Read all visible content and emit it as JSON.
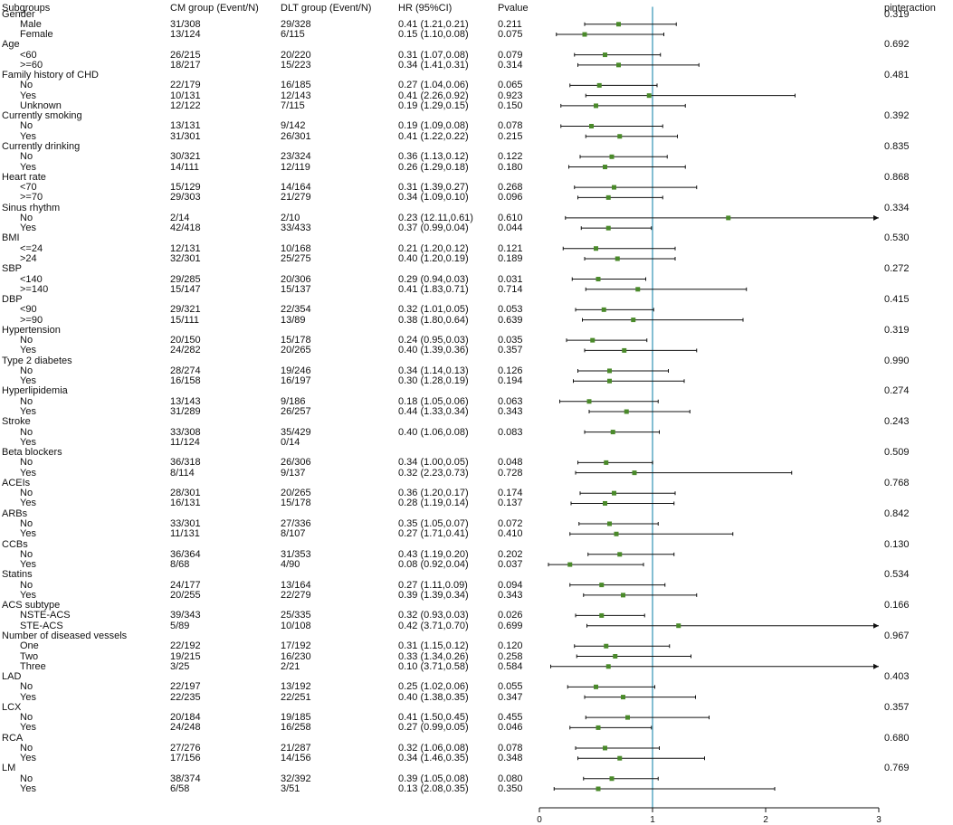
{
  "headers": {
    "subgroups": "Subgroups",
    "cm": "CM group (Event/N)",
    "dlt": "DLT group (Event/N)",
    "hr": "HR (95%CI)",
    "pvalue": "Pvalue",
    "pinteraction": "pinteraction"
  },
  "colors": {
    "ref_line": "#5aa9c4",
    "marker": "#4a8a2a",
    "ci_line": "#111111"
  },
  "chart_data": {
    "type": "forest",
    "reference_line": 1,
    "xlim": [
      0,
      3
    ],
    "x_ticks": [
      "0",
      "1",
      "2",
      "3"
    ],
    "rows": [
      {
        "label": "Gender",
        "kind": "group",
        "pint": "0.319"
      },
      {
        "label": "Male",
        "kind": "sub",
        "cm": "31/308",
        "dlt": "29/328",
        "hr_text": "0.41 (1.21,0.21)",
        "p": "0.211",
        "hr": 0.7,
        "lo": 0.4,
        "hi": 1.21
      },
      {
        "label": "Female",
        "kind": "sub",
        "cm": "13/124",
        "dlt": "6/115",
        "hr_text": "0.15 (1.10,0.08)",
        "p": "0.075",
        "hr": 0.4,
        "lo": 0.15,
        "hi": 1.1
      },
      {
        "label": "Age",
        "kind": "group",
        "pint": "0.692"
      },
      {
        "label": "<60",
        "kind": "sub",
        "cm": "26/215",
        "dlt": "20/220",
        "hr_text": "0.31 (1.07,0.08)",
        "p": "0.079",
        "hr": 0.58,
        "lo": 0.31,
        "hi": 1.07
      },
      {
        "label": ">=60",
        "kind": "sub",
        "cm": "18/217",
        "dlt": "15/223",
        "hr_text": "0.34 (1.41,0.31)",
        "p": "0.314",
        "hr": 0.7,
        "lo": 0.34,
        "hi": 1.41
      },
      {
        "label": "Family history of CHD",
        "kind": "group",
        "pint": "0.481"
      },
      {
        "label": "No",
        "kind": "sub",
        "cm": "22/179",
        "dlt": "16/185",
        "hr_text": "0.27 (1.04,0.06)",
        "p": "0.065",
        "hr": 0.53,
        "lo": 0.27,
        "hi": 1.04
      },
      {
        "label": "Yes",
        "kind": "sub",
        "cm": "10/131",
        "dlt": "12/143",
        "hr_text": "0.41 (2.26,0.92)",
        "p": "0.923",
        "hr": 0.97,
        "lo": 0.41,
        "hi": 2.26
      },
      {
        "label": "Unknown",
        "kind": "sub",
        "cm": "12/122",
        "dlt": "7/115",
        "hr_text": "0.19 (1.29,0.15)",
        "p": "0.150",
        "hr": 0.5,
        "lo": 0.19,
        "hi": 1.29
      },
      {
        "label": "Currently smoking",
        "kind": "group",
        "pint": "0.392"
      },
      {
        "label": "No",
        "kind": "sub",
        "cm": "13/131",
        "dlt": "9/142",
        "hr_text": "0.19 (1.09,0.08)",
        "p": "0.078",
        "hr": 0.46,
        "lo": 0.19,
        "hi": 1.09
      },
      {
        "label": "Yes",
        "kind": "sub",
        "cm": "31/301",
        "dlt": "26/301",
        "hr_text": "0.41 (1.22,0.22)",
        "p": "0.215",
        "hr": 0.71,
        "lo": 0.41,
        "hi": 1.22
      },
      {
        "label": "Currently drinking",
        "kind": "group",
        "pint": "0.835"
      },
      {
        "label": "No",
        "kind": "sub",
        "cm": "30/321",
        "dlt": "23/324",
        "hr_text": "0.36 (1.13,0.12)",
        "p": "0.122",
        "hr": 0.64,
        "lo": 0.36,
        "hi": 1.13
      },
      {
        "label": "Yes",
        "kind": "sub",
        "cm": "14/111",
        "dlt": "12/119",
        "hr_text": "0.26 (1.29,0.18)",
        "p": "0.180",
        "hr": 0.58,
        "lo": 0.26,
        "hi": 1.29
      },
      {
        "label": "Heart rate",
        "kind": "group",
        "pint": "0.868"
      },
      {
        "label": "<70",
        "kind": "sub",
        "cm": "15/129",
        "dlt": "14/164",
        "hr_text": "0.31 (1.39,0.27)",
        "p": "0.268",
        "hr": 0.66,
        "lo": 0.31,
        "hi": 1.39
      },
      {
        "label": ">=70",
        "kind": "sub",
        "cm": "29/303",
        "dlt": "21/279",
        "hr_text": "0.34 (1.09,0.10)",
        "p": "0.096",
        "hr": 0.61,
        "lo": 0.34,
        "hi": 1.09
      },
      {
        "label": "Sinus rhythm",
        "kind": "group",
        "pint": "0.334"
      },
      {
        "label": "No",
        "kind": "sub",
        "cm": "2/14",
        "dlt": "2/10",
        "hr_text": "0.23 (12.11,0.61)",
        "p": "0.610",
        "hr": 1.67,
        "lo": 0.23,
        "hi": 3.0,
        "arrow": true
      },
      {
        "label": "Yes",
        "kind": "sub",
        "cm": "42/418",
        "dlt": "33/433",
        "hr_text": "0.37 (0.99,0.04)",
        "p": "0.044",
        "hr": 0.61,
        "lo": 0.37,
        "hi": 0.99
      },
      {
        "label": "BMI",
        "kind": "group",
        "pint": "0.530"
      },
      {
        "label": "<=24",
        "kind": "sub",
        "cm": "12/131",
        "dlt": "10/168",
        "hr_text": "0.21 (1.20,0.12)",
        "p": "0.121",
        "hr": 0.5,
        "lo": 0.21,
        "hi": 1.2
      },
      {
        "label": ">24",
        "kind": "sub",
        "cm": "32/301",
        "dlt": "25/275",
        "hr_text": "0.40 (1.20,0.19)",
        "p": "0.189",
        "hr": 0.69,
        "lo": 0.4,
        "hi": 1.2
      },
      {
        "label": "SBP",
        "kind": "group",
        "pint": "0.272"
      },
      {
        "label": "<140",
        "kind": "sub",
        "cm": "29/285",
        "dlt": "20/306",
        "hr_text": "0.29 (0.94,0.03)",
        "p": "0.031",
        "hr": 0.52,
        "lo": 0.29,
        "hi": 0.94
      },
      {
        "label": ">=140",
        "kind": "sub",
        "cm": "15/147",
        "dlt": "15/137",
        "hr_text": "0.41 (1.83,0.71)",
        "p": "0.714",
        "hr": 0.87,
        "lo": 0.41,
        "hi": 1.83
      },
      {
        "label": "DBP",
        "kind": "group",
        "pint": "0.415"
      },
      {
        "label": "<90",
        "kind": "sub",
        "cm": "29/321",
        "dlt": "22/354",
        "hr_text": "0.32 (1.01,0.05)",
        "p": "0.053",
        "hr": 0.57,
        "lo": 0.32,
        "hi": 1.01
      },
      {
        "label": ">=90",
        "kind": "sub",
        "cm": "15/111",
        "dlt": "13/89",
        "hr_text": "0.38 (1.80,0.64)",
        "p": "0.639",
        "hr": 0.83,
        "lo": 0.38,
        "hi": 1.8
      },
      {
        "label": "Hypertension",
        "kind": "group",
        "pint": "0.319"
      },
      {
        "label": "No",
        "kind": "sub",
        "cm": "20/150",
        "dlt": "15/178",
        "hr_text": "0.24 (0.95,0.03)",
        "p": "0.035",
        "hr": 0.47,
        "lo": 0.24,
        "hi": 0.95
      },
      {
        "label": "Yes",
        "kind": "sub",
        "cm": "24/282",
        "dlt": "20/265",
        "hr_text": "0.40 (1.39,0.36)",
        "p": "0.357",
        "hr": 0.75,
        "lo": 0.4,
        "hi": 1.39
      },
      {
        "label": "Type 2 diabetes",
        "kind": "group",
        "pint": "0.990"
      },
      {
        "label": "No",
        "kind": "sub",
        "cm": "28/274",
        "dlt": "19/246",
        "hr_text": "0.34 (1.14,0.13)",
        "p": "0.126",
        "hr": 0.62,
        "lo": 0.34,
        "hi": 1.14
      },
      {
        "label": "Yes",
        "kind": "sub",
        "cm": "16/158",
        "dlt": "16/197",
        "hr_text": "0.30 (1.28,0.19)",
        "p": "0.194",
        "hr": 0.62,
        "lo": 0.3,
        "hi": 1.28
      },
      {
        "label": "Hyperlipidemia",
        "kind": "group",
        "pint": "0.274"
      },
      {
        "label": "No",
        "kind": "sub",
        "cm": "13/143",
        "dlt": "9/186",
        "hr_text": "0.18 (1.05,0.06)",
        "p": "0.063",
        "hr": 0.44,
        "lo": 0.18,
        "hi": 1.05
      },
      {
        "label": "Yes",
        "kind": "sub",
        "cm": "31/289",
        "dlt": "26/257",
        "hr_text": "0.44 (1.33,0.34)",
        "p": "0.343",
        "hr": 0.77,
        "lo": 0.44,
        "hi": 1.33
      },
      {
        "label": "Stroke",
        "kind": "group",
        "pint": "0.243"
      },
      {
        "label": "No",
        "kind": "sub",
        "cm": "33/308",
        "dlt": "35/429",
        "hr_text": "0.40 (1.06,0.08)",
        "p": "0.083",
        "hr": 0.65,
        "lo": 0.4,
        "hi": 1.06
      },
      {
        "label": "Yes",
        "kind": "sub",
        "cm": "11/124",
        "dlt": "0/14",
        "hr_text": "",
        "p": ""
      },
      {
        "label": "Beta blockers",
        "kind": "group",
        "pint": "0.509"
      },
      {
        "label": "No",
        "kind": "sub",
        "cm": "36/318",
        "dlt": "26/306",
        "hr_text": "0.34 (1.00,0.05)",
        "p": "0.048",
        "hr": 0.59,
        "lo": 0.34,
        "hi": 1.0
      },
      {
        "label": "Yes",
        "kind": "sub",
        "cm": "8/114",
        "dlt": "9/137",
        "hr_text": "0.32 (2.23,0.73)",
        "p": "0.728",
        "hr": 0.84,
        "lo": 0.32,
        "hi": 2.23
      },
      {
        "label": "ACEIs",
        "kind": "group",
        "pint": "0.768"
      },
      {
        "label": "No",
        "kind": "sub",
        "cm": "28/301",
        "dlt": "20/265",
        "hr_text": "0.36 (1.20,0.17)",
        "p": "0.174",
        "hr": 0.66,
        "lo": 0.36,
        "hi": 1.2
      },
      {
        "label": "Yes",
        "kind": "sub",
        "cm": "16/131",
        "dlt": "15/178",
        "hr_text": "0.28 (1.19,0.14)",
        "p": "0.137",
        "hr": 0.58,
        "lo": 0.28,
        "hi": 1.19
      },
      {
        "label": "ARBs",
        "kind": "group",
        "pint": "0.842"
      },
      {
        "label": "No",
        "kind": "sub",
        "cm": "33/301",
        "dlt": "27/336",
        "hr_text": "0.35 (1.05,0.07)",
        "p": "0.072",
        "hr": 0.62,
        "lo": 0.35,
        "hi": 1.05
      },
      {
        "label": "Yes",
        "kind": "sub",
        "cm": "11/131",
        "dlt": "8/107",
        "hr_text": "0.27 (1.71,0.41)",
        "p": "0.410",
        "hr": 0.68,
        "lo": 0.27,
        "hi": 1.71
      },
      {
        "label": "CCBs",
        "kind": "group",
        "pint": "0.130"
      },
      {
        "label": "No",
        "kind": "sub",
        "cm": "36/364",
        "dlt": "31/353",
        "hr_text": "0.43 (1.19,0.20)",
        "p": "0.202",
        "hr": 0.71,
        "lo": 0.43,
        "hi": 1.19
      },
      {
        "label": "Yes",
        "kind": "sub",
        "cm": "8/68",
        "dlt": "4/90",
        "hr_text": "0.08 (0.92,0.04)",
        "p": "0.037",
        "hr": 0.27,
        "lo": 0.08,
        "hi": 0.92
      },
      {
        "label": "Statins",
        "kind": "group",
        "pint": "0.534"
      },
      {
        "label": "No",
        "kind": "sub",
        "cm": "24/177",
        "dlt": "13/164",
        "hr_text": "0.27 (1.11,0.09)",
        "p": "0.094",
        "hr": 0.55,
        "lo": 0.27,
        "hi": 1.11
      },
      {
        "label": "Yes",
        "kind": "sub",
        "cm": "20/255",
        "dlt": "22/279",
        "hr_text": "0.39 (1.39,0.34)",
        "p": "0.343",
        "hr": 0.74,
        "lo": 0.39,
        "hi": 1.39
      },
      {
        "label": "ACS subtype",
        "kind": "group",
        "pint": "0.166"
      },
      {
        "label": "NSTE-ACS",
        "kind": "sub",
        "cm": "39/343",
        "dlt": "25/335",
        "hr_text": "0.32 (0.93,0.03)",
        "p": "0.026",
        "hr": 0.55,
        "lo": 0.32,
        "hi": 0.93
      },
      {
        "label": "STE-ACS",
        "kind": "sub",
        "cm": "5/89",
        "dlt": "10/108",
        "hr_text": "0.42 (3.71,0.70)",
        "p": "0.699",
        "hr": 1.23,
        "lo": 0.42,
        "hi": 3.0,
        "arrow": true
      },
      {
        "label": "Number of diseased vessels",
        "kind": "group",
        "pint": "0.967"
      },
      {
        "label": "One",
        "kind": "sub",
        "cm": "22/192",
        "dlt": "17/192",
        "hr_text": "0.31 (1.15,0.12)",
        "p": "0.120",
        "hr": 0.59,
        "lo": 0.31,
        "hi": 1.15
      },
      {
        "label": "Two",
        "kind": "sub",
        "cm": "19/215",
        "dlt": "16/230",
        "hr_text": "0.33 (1.34,0.26)",
        "p": "0.258",
        "hr": 0.67,
        "lo": 0.33,
        "hi": 1.34
      },
      {
        "label": "Three",
        "kind": "sub",
        "cm": "3/25",
        "dlt": "2/21",
        "hr_text": "0.10 (3.71,0.58)",
        "p": "0.584",
        "hr": 0.61,
        "lo": 0.1,
        "hi": 3.0,
        "arrow": true
      },
      {
        "label": "LAD",
        "kind": "group",
        "pint": "0.403"
      },
      {
        "label": "No",
        "kind": "sub",
        "cm": "22/197",
        "dlt": "13/192",
        "hr_text": "0.25 (1.02,0.06)",
        "p": "0.055",
        "hr": 0.5,
        "lo": 0.25,
        "hi": 1.02
      },
      {
        "label": "Yes",
        "kind": "sub",
        "cm": "22/235",
        "dlt": "22/251",
        "hr_text": "0.40 (1.38,0.35)",
        "p": "0.347",
        "hr": 0.74,
        "lo": 0.4,
        "hi": 1.38
      },
      {
        "label": "LCX",
        "kind": "group",
        "pint": "0.357"
      },
      {
        "label": "No",
        "kind": "sub",
        "cm": "20/184",
        "dlt": "19/185",
        "hr_text": "0.41 (1.50,0.45)",
        "p": "0.455",
        "hr": 0.78,
        "lo": 0.41,
        "hi": 1.5
      },
      {
        "label": "Yes",
        "kind": "sub",
        "cm": "24/248",
        "dlt": "16/258",
        "hr_text": "0.27 (0.99,0.05)",
        "p": "0.046",
        "hr": 0.52,
        "lo": 0.27,
        "hi": 0.99
      },
      {
        "label": "RCA",
        "kind": "group",
        "pint": "0.680"
      },
      {
        "label": "No",
        "kind": "sub",
        "cm": "27/276",
        "dlt": "21/287",
        "hr_text": "0.32 (1.06,0.08)",
        "p": "0.078",
        "hr": 0.58,
        "lo": 0.32,
        "hi": 1.06
      },
      {
        "label": "Yes",
        "kind": "sub",
        "cm": "17/156",
        "dlt": "14/156",
        "hr_text": "0.34 (1.46,0.35)",
        "p": "0.348",
        "hr": 0.71,
        "lo": 0.34,
        "hi": 1.46
      },
      {
        "label": "LM",
        "kind": "group",
        "pint": "0.769"
      },
      {
        "label": "No",
        "kind": "sub",
        "cm": "38/374",
        "dlt": "32/392",
        "hr_text": "0.39 (1.05,0.08)",
        "p": "0.080",
        "hr": 0.64,
        "lo": 0.39,
        "hi": 1.05
      },
      {
        "label": "Yes",
        "kind": "sub",
        "cm": "6/58",
        "dlt": "3/51",
        "hr_text": "0.13 (2.08,0.35)",
        "p": "0.350",
        "hr": 0.52,
        "lo": 0.13,
        "hi": 2.08
      }
    ]
  }
}
